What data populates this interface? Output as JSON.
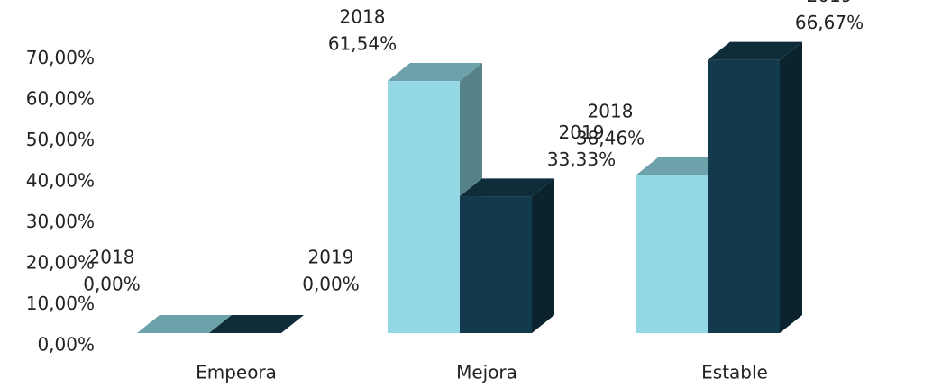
{
  "chart_data": {
    "type": "bar3d",
    "categories": [
      "Empeora",
      "Mejora",
      "Estable"
    ],
    "series": [
      {
        "name": "2018",
        "color": "#93d8e4",
        "values": [
          0,
          61.54,
          38.46
        ],
        "value_labels": [
          "0,00%",
          "61,54%",
          "38,46%"
        ]
      },
      {
        "name": "2019",
        "color": "#133a4c",
        "values": [
          0,
          33.33,
          66.67
        ],
        "value_labels": [
          "0,00%",
          "33,33%",
          "66,67%"
        ]
      }
    ],
    "ylim": [
      0,
      70
    ],
    "yticks": [
      {
        "value": 0,
        "label": "0,00%"
      },
      {
        "value": 10,
        "label": "10,00%"
      },
      {
        "value": 20,
        "label": "20,00%"
      },
      {
        "value": 30,
        "label": "30,00%"
      },
      {
        "value": 40,
        "label": "40,00%"
      },
      {
        "value": 50,
        "label": "50,00%"
      },
      {
        "value": 60,
        "label": "60,00%"
      },
      {
        "value": 70,
        "label": "70,00%"
      }
    ],
    "grid": false
  }
}
